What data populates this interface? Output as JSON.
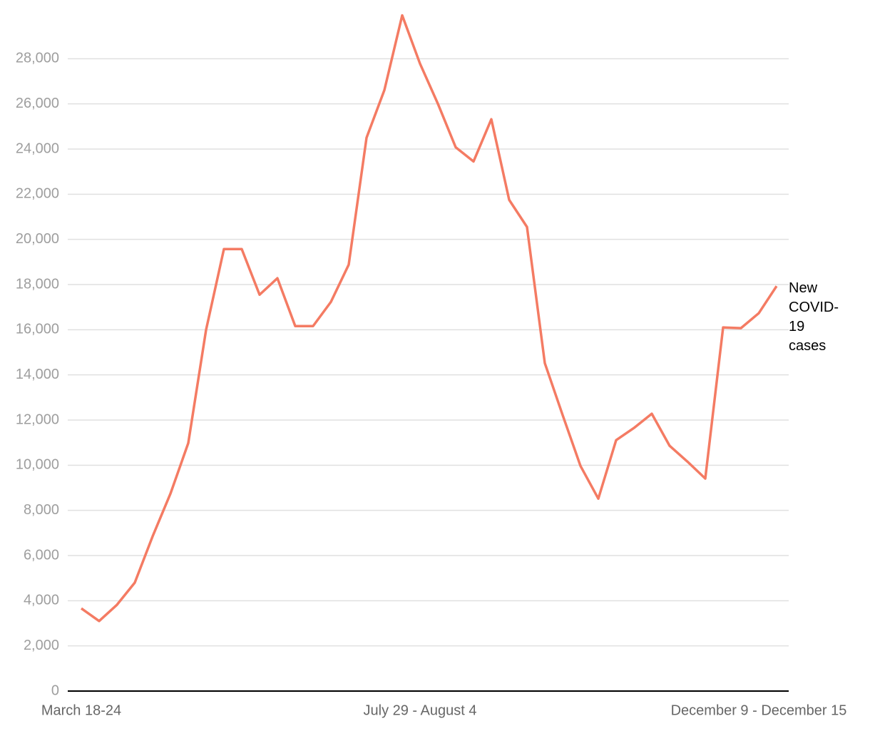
{
  "chart_data": {
    "type": "line",
    "categories": [
      "March 18-24",
      null,
      null,
      null,
      null,
      null,
      null,
      null,
      null,
      null,
      null,
      null,
      null,
      null,
      null,
      null,
      null,
      null,
      null,
      "July 29 - August 4",
      null,
      null,
      null,
      null,
      null,
      null,
      null,
      null,
      null,
      null,
      null,
      null,
      null,
      null,
      null,
      null,
      null,
      null,
      "December 9 - December 15",
      null
    ],
    "series": [
      {
        "name": "New COVID-19 cases",
        "color": "#f47b63",
        "values": [
          3660,
          3100,
          3820,
          4800,
          6850,
          8740,
          10980,
          16000,
          19570,
          19570,
          17550,
          18280,
          16160,
          16160,
          17230,
          18880,
          24500,
          26610,
          29920,
          27780,
          26010,
          24080,
          23450,
          25320,
          21750,
          20550,
          14520,
          12220,
          9970,
          8520,
          11110,
          11650,
          12280,
          10860,
          10160,
          9410,
          16100,
          16070,
          16730,
          17930
        ]
      }
    ],
    "ylim": [
      0,
      30000
    ],
    "yticks": [
      0,
      {
        "value": 2000,
        "label": "2,000"
      },
      {
        "value": 4000,
        "label": "4,000"
      },
      {
        "value": 6000,
        "label": "6,000"
      },
      {
        "value": 8000,
        "label": "8,000"
      },
      {
        "value": 10000,
        "label": "10,000"
      },
      {
        "value": 12000,
        "label": "12,000"
      },
      {
        "value": 14000,
        "label": "14,000"
      },
      {
        "value": 16000,
        "label": "16,000"
      },
      {
        "value": 18000,
        "label": "18,000"
      },
      {
        "value": 20000,
        "label": "20,000"
      },
      {
        "value": 22000,
        "label": "22,000"
      },
      {
        "value": 24000,
        "label": "24,000"
      },
      {
        "value": 26000,
        "label": "26,000"
      },
      {
        "value": 28000,
        "label": "28,000"
      }
    ],
    "grid": true
  }
}
